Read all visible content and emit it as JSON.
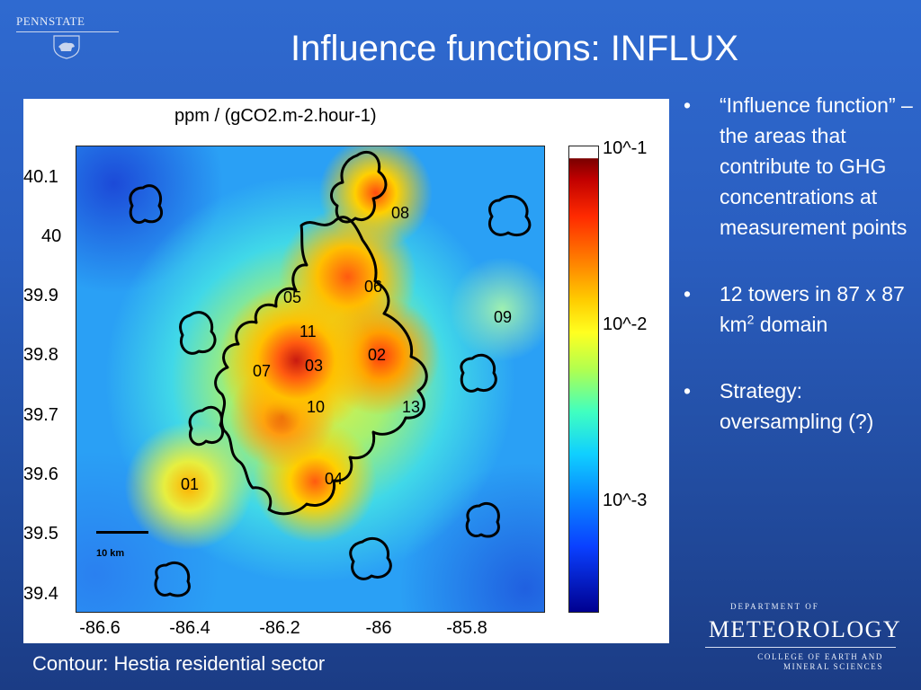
{
  "header": {
    "university_logo": "PENNSTATE",
    "title": "Influence functions:  INFLUX"
  },
  "figure": {
    "title": "ppm / (gCO2.m-2.hour-1)",
    "scale_bar_label": "10 km",
    "chart_data": {
      "type": "heatmap",
      "title": "ppm / (gCO2.m-2.hour-1)",
      "xlim": [
        -86.65,
        -85.6
      ],
      "ylim": [
        39.38,
        40.15
      ],
      "x_ticks": [
        "-86.6",
        "-86.4",
        "-86.2",
        "-86",
        "-85.8"
      ],
      "y_ticks": [
        "40.1",
        "40",
        "39.9",
        "39.8",
        "39.7",
        "39.6",
        "39.5",
        "39.4"
      ],
      "colorbar": {
        "scale": "log",
        "ticks": [
          "10^-1",
          "10^-2",
          "10^-3"
        ]
      },
      "towers": [
        {
          "label": "01",
          "lon": -86.42,
          "lat": 39.6
        },
        {
          "label": "02",
          "lon": -85.98,
          "lat": 39.79
        },
        {
          "label": "03",
          "lon": -86.11,
          "lat": 39.78
        },
        {
          "label": "04",
          "lon": -86.05,
          "lat": 39.61
        },
        {
          "label": "05",
          "lon": -86.14,
          "lat": 39.89
        },
        {
          "label": "06",
          "lon": -86.0,
          "lat": 39.91
        },
        {
          "label": "07",
          "lon": -86.22,
          "lat": 39.78
        },
        {
          "label": "08",
          "lon": -85.96,
          "lat": 40.03
        },
        {
          "label": "09",
          "lon": -85.69,
          "lat": 39.86
        },
        {
          "label": "10",
          "lon": -86.08,
          "lat": 39.71
        },
        {
          "label": "11",
          "lon": -86.13,
          "lat": 39.84
        },
        {
          "label": "13",
          "lon": -85.92,
          "lat": 39.72
        }
      ]
    }
  },
  "bullets": [
    {
      "text": "“Influence function” – the areas that contribute to GHG concentrations at measurement points"
    },
    {
      "text_before": "12 towers in 87 x 87 km",
      "superscript": "2",
      "text_after": " domain"
    },
    {
      "text": "Strategy: oversampling (?)"
    }
  ],
  "caption": "Contour: Hestia residential sector",
  "department_logo": {
    "dept": "DEPARTMENT OF",
    "name": "METEOROLOGY",
    "college_line1": "COLLEGE OF EARTH AND",
    "college_line2": "MINERAL SCIENCES"
  },
  "colors": {
    "background": "#2a5ec0",
    "text": "#ffffff"
  }
}
